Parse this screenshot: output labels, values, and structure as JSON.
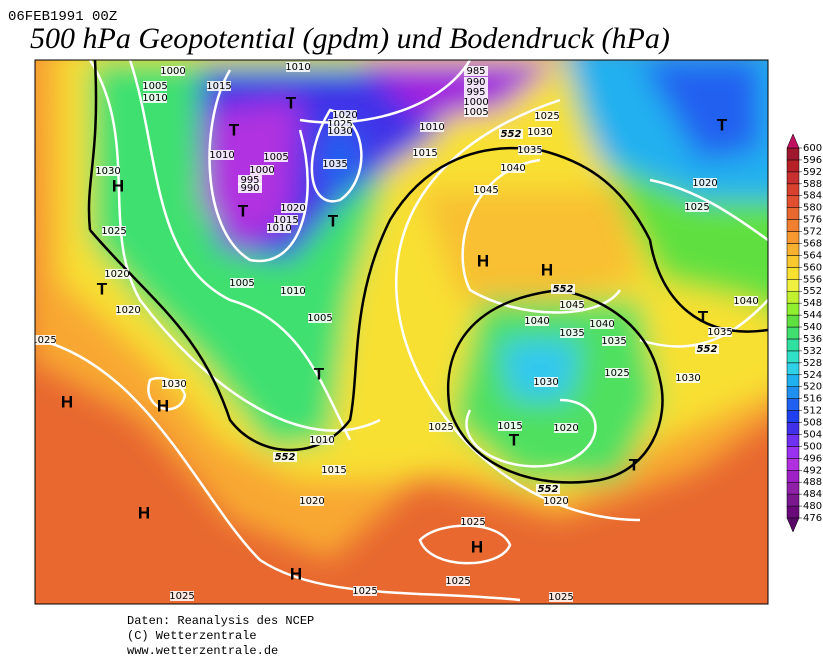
{
  "header": {
    "date": "06FEB1991 00Z",
    "title": "500 hPa Geopotential (gpdm) und Bodendruck (hPa)"
  },
  "colorbar": {
    "levels": [
      476,
      480,
      484,
      488,
      492,
      496,
      500,
      504,
      508,
      512,
      516,
      520,
      524,
      528,
      532,
      536,
      540,
      544,
      548,
      552,
      556,
      560,
      564,
      568,
      572,
      576,
      580,
      584,
      588,
      592,
      596,
      600
    ],
    "colors": [
      "#6a0a7a",
      "#7b1890",
      "#9020a8",
      "#a020c8",
      "#b030e0",
      "#9a30f0",
      "#7030f0",
      "#4030e8",
      "#2040f0",
      "#2060f0",
      "#2090f0",
      "#20b0f0",
      "#30d0e8",
      "#30e0c8",
      "#30e0a0",
      "#40e070",
      "#60e040",
      "#90f030",
      "#c0f030",
      "#f0f040",
      "#f8e030",
      "#f8c830",
      "#f8b030",
      "#f89830",
      "#f08030",
      "#e86830",
      "#e05030",
      "#d84030",
      "#c83030",
      "#b82028",
      "#a01830"
    ],
    "under_color": "#5a0868",
    "over_color": "#c01060"
  },
  "map_labels": {
    "isobars": [
      "1000",
      "1005",
      "1010",
      "1015",
      "1010",
      "985",
      "990",
      "995",
      "1000",
      "1005",
      "1020",
      "1025",
      "1030",
      "1010",
      "1015",
      "1025",
      "1030",
      "1035",
      "1040",
      "1045",
      "1010",
      "1005",
      "1000",
      "995",
      "990",
      "1035",
      "1020",
      "1015",
      "1010",
      "1030",
      "1025",
      "1020",
      "1020",
      "1005",
      "1010",
      "1005",
      "1025",
      "1030",
      "1010",
      "1015",
      "1020",
      "1025",
      "1015",
      "1020",
      "1030",
      "1025",
      "1035",
      "1040",
      "1040",
      "1035",
      "1045",
      "1020",
      "1025",
      "1040",
      "1035",
      "1030",
      "1025",
      "1025",
      "1025",
      "1025",
      "1025",
      "1020"
    ],
    "contour_552": [
      "552",
      "552",
      "552",
      "552",
      "552"
    ],
    "highs": [
      "H",
      "H",
      "H",
      "H",
      "H",
      "H",
      "H",
      "H"
    ],
    "lows": [
      "T",
      "T",
      "T",
      "T",
      "T",
      "T",
      "T",
      "T",
      "T",
      "T"
    ]
  },
  "footer": {
    "lines": [
      "Daten: Reanalysis des NCEP",
      "(C) Wetterzentrale",
      "www.wetterzentrale.de"
    ]
  }
}
